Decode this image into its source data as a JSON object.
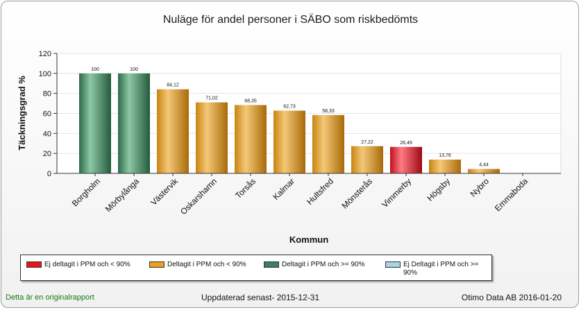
{
  "chart_data": {
    "type": "bar",
    "title": "Nuläge för andel personer i SÄBO som riskbedömts",
    "xlabel": "Kommun",
    "ylabel": "Täckningsgrad %",
    "ylim": [
      0,
      120
    ],
    "yticks": [
      0,
      20,
      40,
      60,
      80,
      100,
      120
    ],
    "categories": [
      "Borgholm",
      "Mörbylånga",
      "Västervik",
      "Oskarshamn",
      "Torsås",
      "Kalmar",
      "Hultsfred",
      "Mönsterås",
      "Vimmerby",
      "Högsby",
      "Nybro",
      "Emmaboda"
    ],
    "values": [
      100,
      100,
      84.12,
      71.02,
      68.35,
      62.73,
      58.33,
      27.22,
      26.49,
      13.76,
      4.44,
      0
    ],
    "value_labels": [
      "100",
      "100",
      "84,12",
      "71,02",
      "68,35",
      "62,73",
      "58,33",
      "27,22",
      "26,49",
      "13,76",
      "4,44",
      ""
    ],
    "bar_groups": [
      "green",
      "green",
      "orange",
      "orange",
      "orange",
      "orange",
      "orange",
      "orange",
      "red",
      "orange",
      "orange",
      "orange"
    ],
    "grid": true,
    "legend_position": "bottom"
  },
  "colors": {
    "green": "#3a8a5c",
    "orange": "#e0a020",
    "red": "#e01a2a",
    "lightblue": "#a8d4e6"
  },
  "legend": [
    {
      "label": "Ej deltagit i PPM och < 90%",
      "color": "#e8141c"
    },
    {
      "label": "Deltagit i PPM och < 90%",
      "color": "#f0a020"
    },
    {
      "label": "Deltagit i PPM och >= 90%",
      "color": "#3c8060"
    },
    {
      "label": "Ej Deltagit i PPM och >= 90%",
      "color": "#a8d4e6"
    }
  ],
  "footer": {
    "left": "Detta är en originalrapport",
    "middle": "Uppdaterad senast- 2015-12-31",
    "right": "Otimo Data AB 2016-01-20"
  }
}
